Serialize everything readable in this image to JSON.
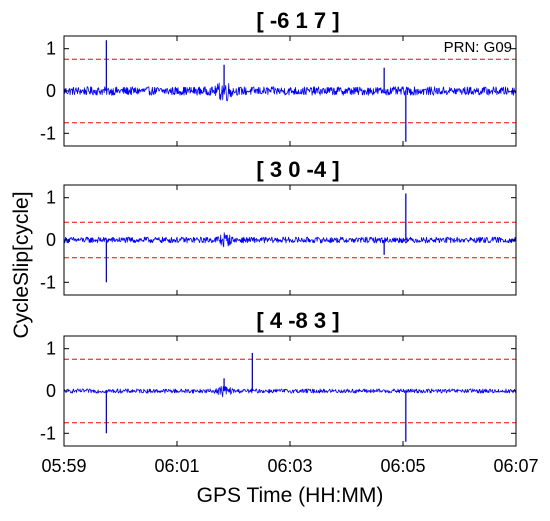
{
  "figure": {
    "prn_label": "PRN: G09",
    "xlabel": "GPS Time (HH:MM)",
    "ylabel": "CycleSlip[cycle]"
  },
  "colors": {
    "signal": "#0000ff",
    "threshold": "#ff0000",
    "frame": "#000000"
  },
  "chart_data": [
    {
      "type": "line",
      "title": "[ -6 1 7 ]",
      "xlim": [
        "05:59",
        "06:07"
      ],
      "ylim": [
        -1.3,
        1.3
      ],
      "yticks": [
        1,
        0,
        -1
      ],
      "xticks": [
        "05:59",
        "06:01",
        "06:03",
        "06:05",
        "06:07"
      ],
      "threshold": 0.75,
      "noise_amplitude": 0.1,
      "disturbance": {
        "time": "06:01:50",
        "amplitude": 0.28
      },
      "spikes": [
        {
          "time": "05:59:45",
          "value": 1.2
        },
        {
          "time": "06:01:50",
          "value": 0.62
        },
        {
          "time": "06:04:40",
          "value": 0.55
        },
        {
          "time": "06:05:03",
          "value": -1.2
        }
      ]
    },
    {
      "type": "line",
      "title": "[ 3 0 -4 ]",
      "xlim": [
        "05:59",
        "06:07"
      ],
      "ylim": [
        -1.3,
        1.3
      ],
      "yticks": [
        1,
        0,
        -1
      ],
      "xticks": [
        "05:59",
        "06:01",
        "06:03",
        "06:05",
        "06:07"
      ],
      "threshold": 0.42,
      "noise_amplitude": 0.07,
      "disturbance": {
        "time": "06:01:50",
        "amplitude": 0.18
      },
      "spikes": [
        {
          "time": "05:59:45",
          "value": -1.0
        },
        {
          "time": "06:04:40",
          "value": -0.35
        },
        {
          "time": "06:05:03",
          "value": 1.1
        }
      ]
    },
    {
      "type": "line",
      "title": "[ 4 -8 3 ]",
      "xlim": [
        "05:59",
        "06:07"
      ],
      "ylim": [
        -1.3,
        1.3
      ],
      "yticks": [
        1,
        0,
        -1
      ],
      "xticks": [
        "05:59",
        "06:01",
        "06:03",
        "06:05",
        "06:07"
      ],
      "threshold": 0.75,
      "noise_amplitude": 0.05,
      "disturbance": {
        "time": "06:01:50",
        "amplitude": 0.14
      },
      "spikes": [
        {
          "time": "05:59:45",
          "value": -1.0
        },
        {
          "time": "06:01:50",
          "value": 0.3
        },
        {
          "time": "06:02:20",
          "value": 0.9
        },
        {
          "time": "06:05:03",
          "value": -1.2
        }
      ]
    }
  ]
}
